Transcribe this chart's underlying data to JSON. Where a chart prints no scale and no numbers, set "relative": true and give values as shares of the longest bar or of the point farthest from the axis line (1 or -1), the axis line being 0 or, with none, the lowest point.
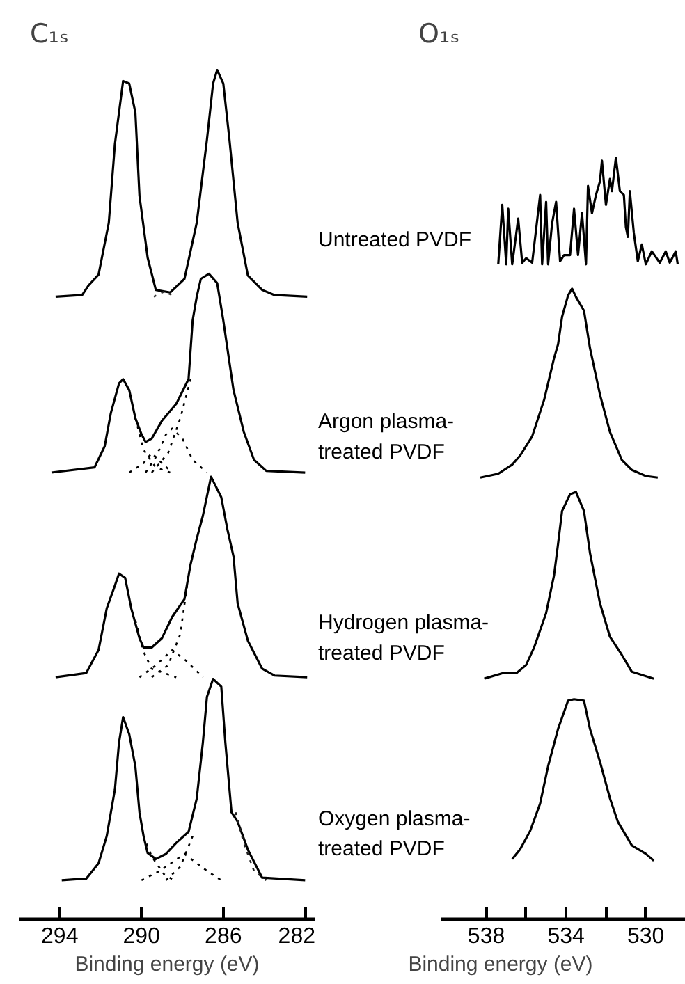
{
  "chart_data": [
    {
      "type": "line",
      "title": "C₁ₛ",
      "xlabel": "Binding energy (eV)",
      "relative": true,
      "xlim": [
        296,
        281.5
      ],
      "xticks": [
        294,
        290,
        286,
        282
      ],
      "series": [
        {
          "color": "#000000",
          "line_style": "solid",
          "x": [
            294.2,
            292.9,
            292.6,
            292.1,
            291.6,
            291.3,
            290.9,
            290.6,
            290.3,
            290.1,
            289.7,
            289.3,
            288.6,
            287.9,
            287.3,
            286.8,
            286.5,
            286.3,
            286.0,
            285.7,
            285.3,
            284.8,
            284.1,
            283.5,
            281.9
          ],
          "values": [
            0.733,
            0.735,
            0.746,
            0.759,
            0.82,
            0.913,
            0.987,
            0.984,
            0.95,
            0.852,
            0.779,
            0.741,
            0.738,
            0.754,
            0.82,
            0.918,
            0.984,
            1.0,
            0.984,
            0.918,
            0.82,
            0.758,
            0.741,
            0.735,
            0.733
          ]
        },
        {
          "color": "#333333",
          "line_style": "dotted",
          "x": [
            289.4,
            288.9,
            288.3
          ],
          "values": [
            0.733,
            0.739,
            0.733
          ]
        },
        {
          "color": "#000000",
          "line_style": "solid",
          "x": [
            294.4,
            292.3,
            291.8,
            291.5,
            291.1,
            290.9,
            290.6,
            290.3,
            290.0,
            289.8,
            289.5,
            289.0,
            288.3,
            287.7,
            287.5,
            287.3,
            287.1,
            286.7,
            286.3,
            286.0,
            285.8,
            285.5,
            285.0,
            284.5,
            283.9,
            282.0
          ],
          "values": [
            0.526,
            0.532,
            0.557,
            0.596,
            0.631,
            0.636,
            0.623,
            0.59,
            0.571,
            0.562,
            0.566,
            0.587,
            0.607,
            0.636,
            0.705,
            0.733,
            0.754,
            0.76,
            0.749,
            0.705,
            0.672,
            0.623,
            0.574,
            0.541,
            0.528,
            0.526
          ]
        },
        {
          "color": "#000000",
          "line_style": "dotted",
          "x": [
            290.3,
            289.9,
            289.3,
            288.6
          ],
          "values": [
            0.59,
            0.553,
            0.532,
            0.526
          ]
        },
        {
          "color": "#000000",
          "line_style": "dotted",
          "x": [
            290.6,
            289.9,
            289.5,
            289.0,
            288.5
          ],
          "values": [
            0.526,
            0.537,
            0.549,
            0.537,
            0.526
          ]
        },
        {
          "color": "#000000",
          "line_style": "dotted",
          "x": [
            289.8,
            289.3,
            288.8,
            288.5,
            288.0,
            287.5,
            286.8
          ],
          "values": [
            0.526,
            0.544,
            0.571,
            0.578,
            0.566,
            0.541,
            0.526
          ]
        },
        {
          "color": "#000000",
          "line_style": "dotted",
          "x": [
            289.5,
            288.7,
            288.1,
            287.6
          ],
          "values": [
            0.526,
            0.549,
            0.59,
            0.636
          ]
        },
        {
          "color": "#000000",
          "line_style": "solid",
          "x": [
            294.2,
            292.7,
            292.1,
            291.7,
            291.3,
            291.1,
            290.8,
            290.5,
            290.1,
            289.9,
            289.5,
            289.0,
            288.5,
            287.9,
            287.6,
            287.3,
            287.0,
            286.6,
            286.1,
            285.8,
            285.5,
            285.3,
            284.8,
            284.1,
            283.5,
            281.9
          ],
          "values": [
            0.285,
            0.29,
            0.317,
            0.366,
            0.393,
            0.407,
            0.402,
            0.366,
            0.331,
            0.32,
            0.32,
            0.331,
            0.356,
            0.377,
            0.418,
            0.448,
            0.475,
            0.521,
            0.497,
            0.459,
            0.427,
            0.372,
            0.328,
            0.295,
            0.287,
            0.285
          ]
        },
        {
          "color": "#000000",
          "line_style": "dotted",
          "x": [
            290.3,
            289.9,
            289.5,
            288.3
          ],
          "values": [
            0.352,
            0.315,
            0.295,
            0.285
          ]
        },
        {
          "color": "#000000",
          "line_style": "dotted",
          "x": [
            290.1,
            289.3,
            288.5,
            287.8,
            287.0
          ],
          "values": [
            0.285,
            0.299,
            0.317,
            0.304,
            0.285
          ]
        },
        {
          "color": "#000000",
          "line_style": "dotted",
          "x": [
            289.5,
            288.7,
            288.1,
            287.7
          ],
          "values": [
            0.285,
            0.299,
            0.336,
            0.405
          ]
        },
        {
          "color": "#000000",
          "line_style": "solid",
          "x": [
            293.9,
            292.7,
            292.1,
            291.7,
            291.3,
            291.1,
            290.9,
            290.6,
            290.3,
            290.1,
            289.9,
            289.7,
            289.3,
            288.8,
            288.3,
            287.7,
            287.3,
            287.0,
            286.8,
            286.5,
            286.1,
            285.9,
            285.6,
            285.3,
            284.8,
            284.1,
            282.0
          ],
          "values": [
            0.046,
            0.048,
            0.066,
            0.098,
            0.153,
            0.208,
            0.238,
            0.218,
            0.18,
            0.126,
            0.098,
            0.078,
            0.071,
            0.077,
            0.09,
            0.103,
            0.142,
            0.208,
            0.262,
            0.283,
            0.274,
            0.208,
            0.126,
            0.115,
            0.082,
            0.049,
            0.046
          ]
        },
        {
          "color": "#000000",
          "line_style": "dotted",
          "x": [
            289.9,
            289.5,
            288.9,
            288.4
          ],
          "values": [
            0.098,
            0.074,
            0.053,
            0.046
          ]
        },
        {
          "color": "#000000",
          "line_style": "dotted",
          "x": [
            290.0,
            289.1,
            287.9,
            286.8,
            286.1
          ],
          "values": [
            0.046,
            0.057,
            0.077,
            0.057,
            0.046
          ]
        },
        {
          "color": "#000000",
          "line_style": "dotted",
          "x": [
            288.8,
            288.1,
            287.5
          ],
          "values": [
            0.046,
            0.062,
            0.098
          ]
        },
        {
          "color": "#222222",
          "line_style": "dotted",
          "x": [
            285.4,
            285.0,
            284.5,
            283.9
          ],
          "values": [
            0.126,
            0.09,
            0.057,
            0.046
          ]
        }
      ]
    },
    {
      "type": "line",
      "title": "O₁ₛ",
      "xlabel": "Binding energy (eV)",
      "relative": true,
      "xlim": [
        540.3,
        528.0
      ],
      "xticks": [
        538,
        {
          "value": 536,
          "label": null
        },
        534,
        {
          "value": 532,
          "label": null
        },
        530
      ],
      "annotations": [
        "Untreated PVDF",
        "Argon plasma-\ntreated PVDF",
        "Hydrogen plasma-\ntreated PVDF",
        "Oxygen plasma-\ntreated PVDF"
      ],
      "series": [
        {
          "color": "#000000",
          "line_style": "solid",
          "x": [
            537.4,
            537.2,
            537.0,
            536.9,
            536.7,
            536.4,
            536.2,
            536.0,
            535.7,
            535.3,
            535.2,
            535.0,
            534.9,
            534.7,
            534.5,
            534.3,
            534.1,
            533.8,
            533.6,
            533.4,
            533.2,
            533.0,
            532.9,
            532.7,
            532.5,
            532.3,
            532.2,
            532.0,
            531.8,
            531.7,
            531.5,
            531.3,
            531.1,
            531.0,
            530.9,
            530.8,
            530.6,
            530.4,
            530.2,
            530.0,
            529.7,
            529.3,
            529.0,
            528.8,
            528.5,
            528.4
          ],
          "values": [
            0.86,
            0.938,
            0.86,
            0.933,
            0.86,
            0.92,
            0.862,
            0.868,
            0.862,
            0.951,
            0.86,
            0.942,
            0.86,
            0.914,
            0.942,
            0.864,
            0.872,
            0.872,
            0.933,
            0.872,
            0.927,
            0.86,
            0.963,
            0.927,
            0.951,
            0.969,
            0.996,
            0.938,
            0.972,
            0.956,
            1.0,
            0.956,
            0.951,
            0.909,
            0.896,
            0.956,
            0.901,
            0.864,
            0.886,
            0.86,
            0.877,
            0.862,
            0.877,
            0.862,
            0.877,
            0.86
          ]
        },
        {
          "color": "#000000",
          "line_style": "solid",
          "x": [
            538.3,
            537.4,
            536.7,
            536.3,
            535.7,
            535.1,
            534.6,
            534.4,
            534.2,
            533.9,
            533.7,
            533.5,
            533.1,
            532.8,
            532.3,
            531.8,
            531.2,
            530.7,
            530.0,
            529.4
          ],
          "values": [
            0.58,
            0.585,
            0.597,
            0.609,
            0.634,
            0.682,
            0.737,
            0.755,
            0.791,
            0.819,
            0.828,
            0.817,
            0.799,
            0.75,
            0.689,
            0.64,
            0.603,
            0.59,
            0.582,
            0.58
          ]
        },
        {
          "color": "#000000",
          "line_style": "solid",
          "x": [
            538.1,
            537.2,
            536.5,
            536.0,
            535.6,
            535.0,
            534.6,
            534.4,
            534.2,
            533.8,
            533.5,
            533.1,
            532.8,
            532.3,
            531.8,
            531.2,
            530.7,
            529.6
          ],
          "values": [
            0.316,
            0.323,
            0.323,
            0.334,
            0.357,
            0.402,
            0.452,
            0.493,
            0.536,
            0.558,
            0.561,
            0.536,
            0.481,
            0.415,
            0.371,
            0.347,
            0.325,
            0.316
          ]
        },
        {
          "color": "#000000",
          "line_style": "solid",
          "x": [
            536.7,
            536.3,
            535.8,
            535.3,
            534.9,
            534.4,
            533.9,
            533.6,
            533.1,
            532.8,
            532.3,
            531.8,
            531.4,
            530.7,
            530.0,
            529.6
          ],
          "values": [
            0.079,
            0.092,
            0.116,
            0.152,
            0.201,
            0.25,
            0.287,
            0.289,
            0.287,
            0.25,
            0.207,
            0.159,
            0.128,
            0.097,
            0.086,
            0.077
          ]
        }
      ]
    }
  ]
}
